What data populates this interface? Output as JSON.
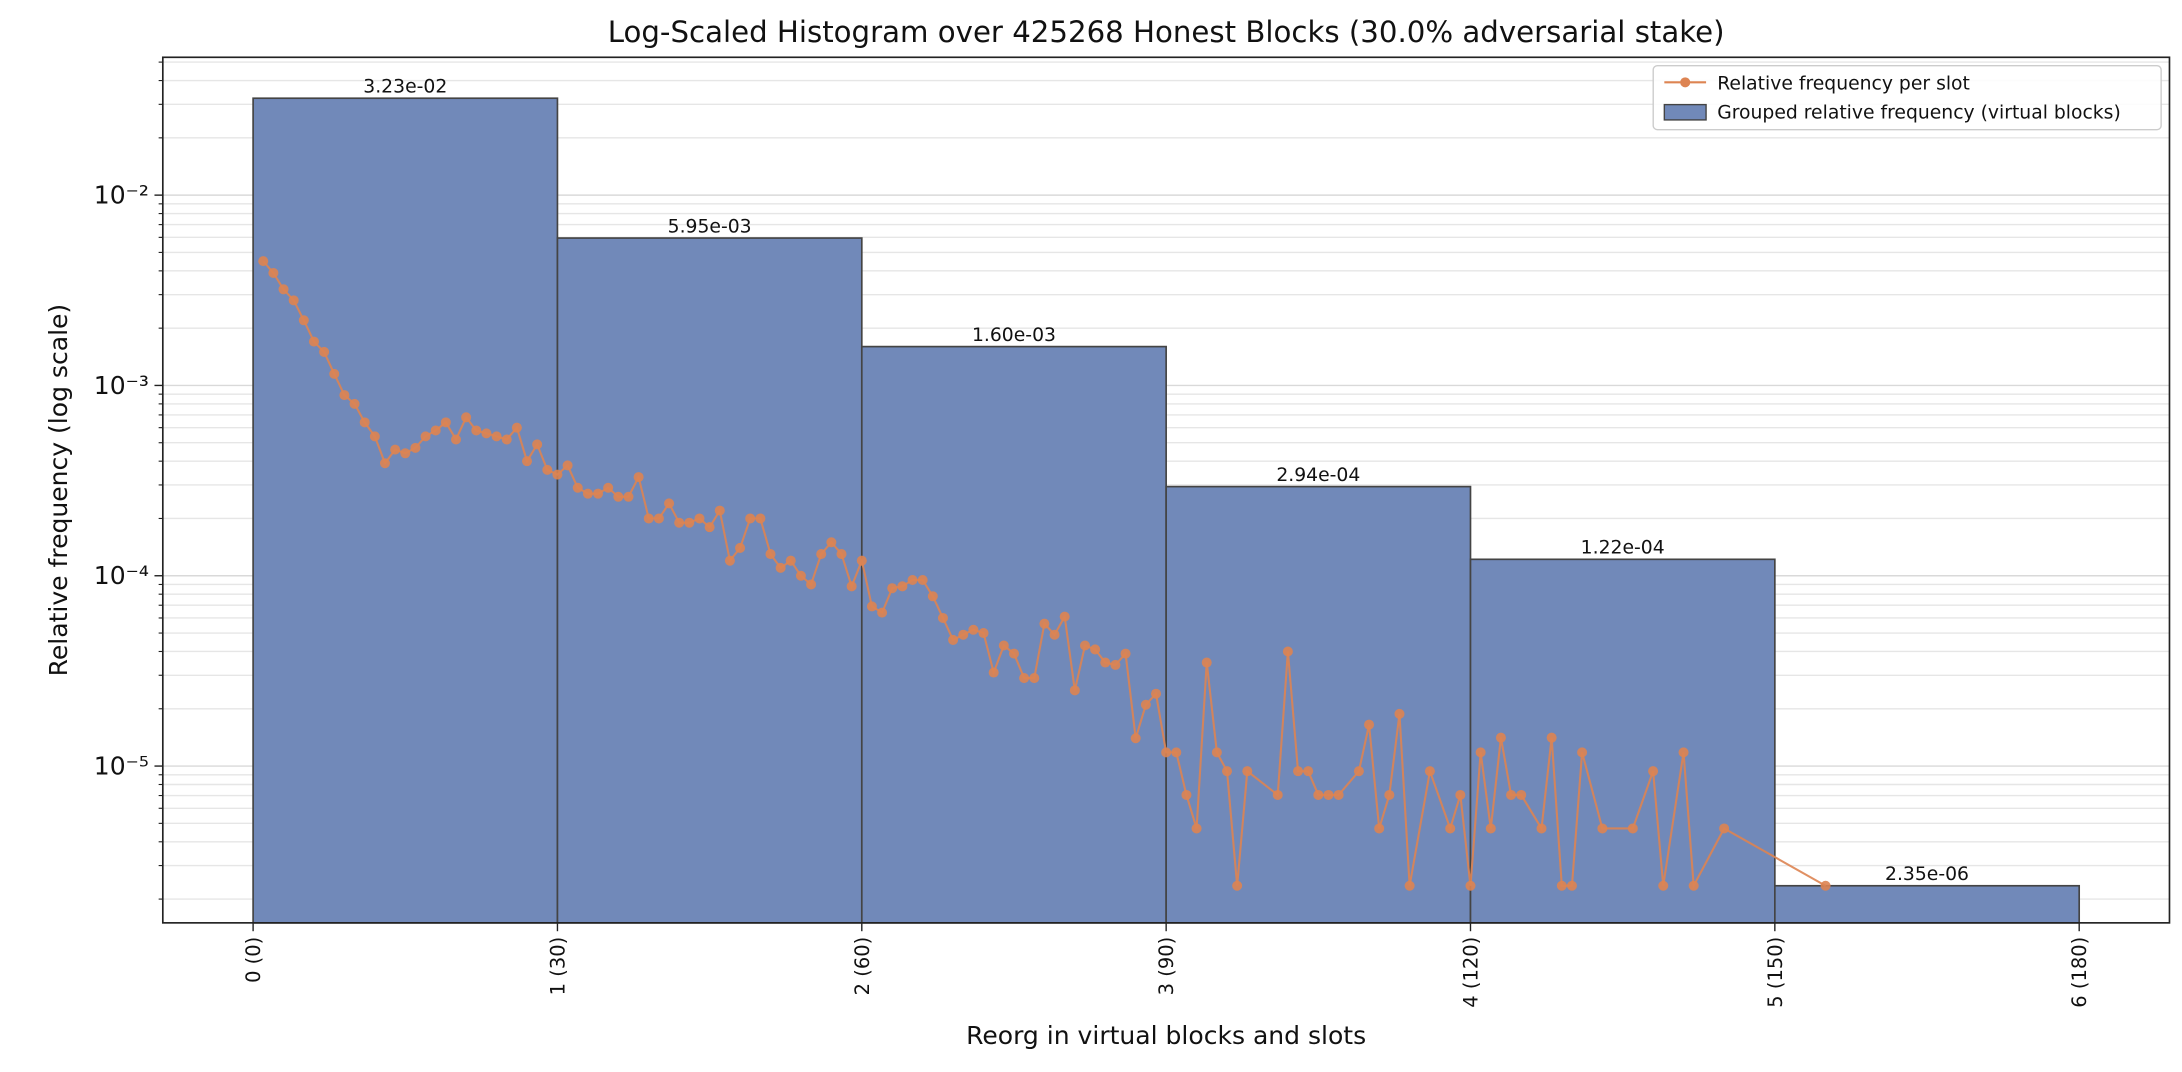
{
  "chart_data": {
    "type": "histogram",
    "title": "Log-Scaled Histogram over 425268 Honest Blocks (30.0% adversarial stake)",
    "xlabel": "Reorg in virtual blocks and slots",
    "ylabel": "Relative frequency (log scale)",
    "log_y": true,
    "grid": true,
    "legend": "upper right",
    "xlim": [
      -8.9,
      188.9
    ],
    "ylim": [
      1.5e-06,
      0.053
    ],
    "xticks": [
      {
        "value": 0,
        "label": "0 (0)"
      },
      {
        "value": 30,
        "label": "1 (30)"
      },
      {
        "value": 60,
        "label": "2 (60)"
      },
      {
        "value": 90,
        "label": "3 (90)"
      },
      {
        "value": 120,
        "label": "4 (120)"
      },
      {
        "value": 150,
        "label": "5 (150)"
      },
      {
        "value": 180,
        "label": "6 (180)"
      }
    ],
    "yticks": [
      {
        "value": 1e-05,
        "label": "10⁻⁵"
      },
      {
        "value": 0.0001,
        "label": "10⁻⁴"
      },
      {
        "value": 0.001,
        "label": "10⁻³"
      },
      {
        "value": 0.01,
        "label": "10⁻²"
      }
    ],
    "yminorticks": [
      2e-06,
      3e-06,
      4e-06,
      5e-06,
      6e-06,
      7e-06,
      8e-06,
      9e-06,
      2e-05,
      3e-05,
      4e-05,
      5e-05,
      6e-05,
      7e-05,
      8e-05,
      9e-05,
      0.0002,
      0.0003,
      0.0004,
      0.0005,
      0.0006,
      0.0007,
      0.0008,
      0.0009,
      0.002,
      0.003,
      0.004,
      0.005,
      0.006,
      0.007,
      0.008,
      0.009,
      0.02,
      0.03,
      0.04,
      0.05
    ],
    "series": [
      {
        "name": "Relative frequency per slot",
        "type": "line",
        "color": "#dd8452",
        "x": [
          1,
          2,
          3,
          4,
          5,
          6,
          7,
          8,
          9,
          10,
          11,
          12,
          13,
          14,
          15,
          16,
          17,
          18,
          19,
          20,
          21,
          22,
          23,
          24,
          25,
          26,
          27,
          28,
          29,
          30,
          31,
          32,
          33,
          34,
          35,
          36,
          37,
          38,
          39,
          40,
          41,
          42,
          43,
          44,
          45,
          46,
          47,
          48,
          49,
          50,
          51,
          52,
          53,
          54,
          55,
          56,
          57,
          58,
          59,
          60,
          61,
          62,
          63,
          64,
          65,
          66,
          67,
          68,
          69,
          70,
          71,
          72,
          73,
          74,
          75,
          76,
          77,
          78,
          79,
          80,
          81,
          82,
          83,
          84,
          85,
          86,
          87,
          88,
          89,
          90,
          91,
          92,
          93,
          94,
          95,
          96,
          97,
          98,
          101,
          102,
          103,
          104,
          105,
          106,
          107,
          109,
          110,
          111,
          112,
          113,
          114,
          116,
          118,
          119,
          120,
          121,
          122,
          123,
          124,
          125,
          127,
          128,
          129,
          130,
          131,
          133,
          136,
          138,
          139,
          141,
          142,
          145,
          155
        ],
        "values": [
          0.0045,
          0.0039,
          0.0032,
          0.0028,
          0.0022,
          0.0017,
          0.0015,
          0.00115,
          0.00089,
          0.0008,
          0.00064,
          0.00054,
          0.00039,
          0.00046,
          0.00044,
          0.00047,
          0.00054,
          0.00058,
          0.00064,
          0.00052,
          0.00068,
          0.00058,
          0.00056,
          0.00054,
          0.00052,
          0.0006,
          0.0004,
          0.00049,
          0.00036,
          0.00034,
          0.00038,
          0.00029,
          0.00027,
          0.00027,
          0.00029,
          0.00026,
          0.00026,
          0.00033,
          0.0002,
          0.0002,
          0.00024,
          0.00019,
          0.00019,
          0.0002,
          0.00018,
          0.00022,
          0.00012,
          0.00014,
          0.0002,
          0.0002,
          0.00013,
          0.00011,
          0.00012,
          0.0001,
          9e-05,
          0.00013,
          0.00015,
          0.00013,
          8.8e-05,
          0.00012,
          6.9e-05,
          6.4e-05,
          8.6e-05,
          8.8e-05,
          9.5e-05,
          9.5e-05,
          7.8e-05,
          6e-05,
          4.6e-05,
          4.9e-05,
          5.2e-05,
          5e-05,
          3.1e-05,
          4.3e-05,
          3.9e-05,
          2.9e-05,
          2.9e-05,
          5.6e-05,
          4.9e-05,
          6.1e-05,
          2.5e-05,
          4.3e-05,
          4.1e-05,
          3.5e-05,
          3.4e-05,
          3.9e-05,
          1.4e-05,
          2.1e-05,
          2.4e-05,
          1.18e-05,
          1.18e-05,
          7.05e-06,
          4.7e-06,
          3.5e-05,
          1.18e-05,
          9.4e-06,
          2.35e-06,
          9.4e-06,
          7.05e-06,
          4e-05,
          9.4e-06,
          9.4e-06,
          7.05e-06,
          7.05e-06,
          7.05e-06,
          9.4e-06,
          1.65e-05,
          4.7e-06,
          7.05e-06,
          1.88e-05,
          2.35e-06,
          9.4e-06,
          4.7e-06,
          7.05e-06,
          2.35e-06,
          1.18e-05,
          4.7e-06,
          1.41e-05,
          7.05e-06,
          7.05e-06,
          4.7e-06,
          1.41e-05,
          2.35e-06,
          2.35e-06,
          1.18e-05,
          4.7e-06,
          4.7e-06,
          9.4e-06,
          2.35e-06,
          1.18e-05,
          2.35e-06,
          4.7e-06,
          2.35e-06
        ]
      },
      {
        "name": "Grouped relative frequency (virtual blocks)",
        "type": "histogram",
        "color": "#7189b9",
        "bins": [
          0,
          30,
          60,
          90,
          120,
          150,
          180
        ],
        "values": [
          0.0323,
          0.00595,
          0.0016,
          0.000294,
          0.000122,
          2.35e-06
        ],
        "value_labels": [
          "3.23e-02",
          "5.95e-03",
          "1.60e-03",
          "2.94e-04",
          "1.22e-04",
          "2.35e-06"
        ]
      }
    ]
  }
}
